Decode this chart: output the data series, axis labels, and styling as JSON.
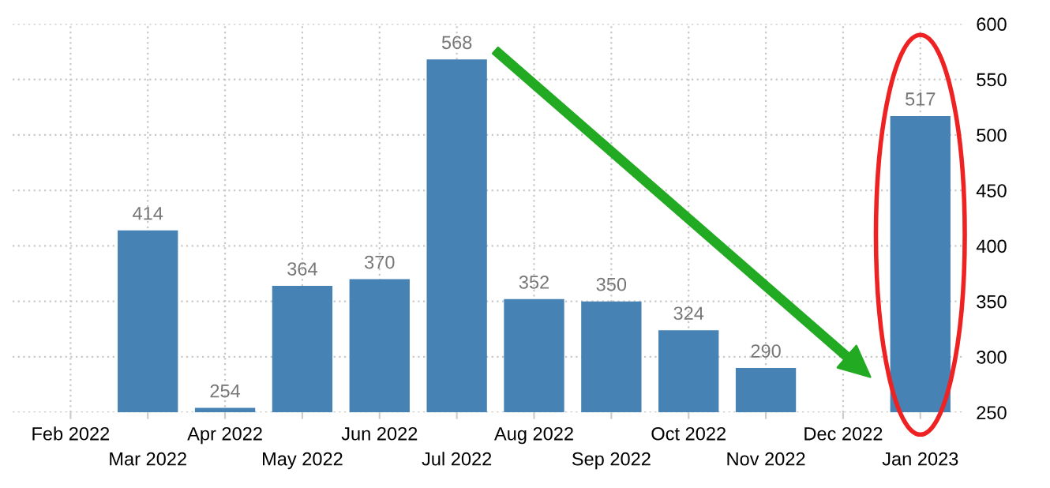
{
  "chart_data": {
    "type": "bar",
    "categories": [
      "Feb 2022",
      "Mar 2022",
      "Apr 2022",
      "May 2022",
      "Jun 2022",
      "Jul 2022",
      "Aug 2022",
      "Sep 2022",
      "Oct 2022",
      "Nov 2022",
      "Dec 2022",
      "Jan 2023"
    ],
    "values": [
      null,
      414,
      254,
      364,
      370,
      568,
      352,
      350,
      324,
      290,
      null,
      517
    ],
    "color": "#4682b4",
    "ylim": [
      250,
      600
    ],
    "yticks": [
      250,
      300,
      350,
      400,
      450,
      500,
      550,
      600
    ],
    "grid": true,
    "data_labels": true
  }
}
